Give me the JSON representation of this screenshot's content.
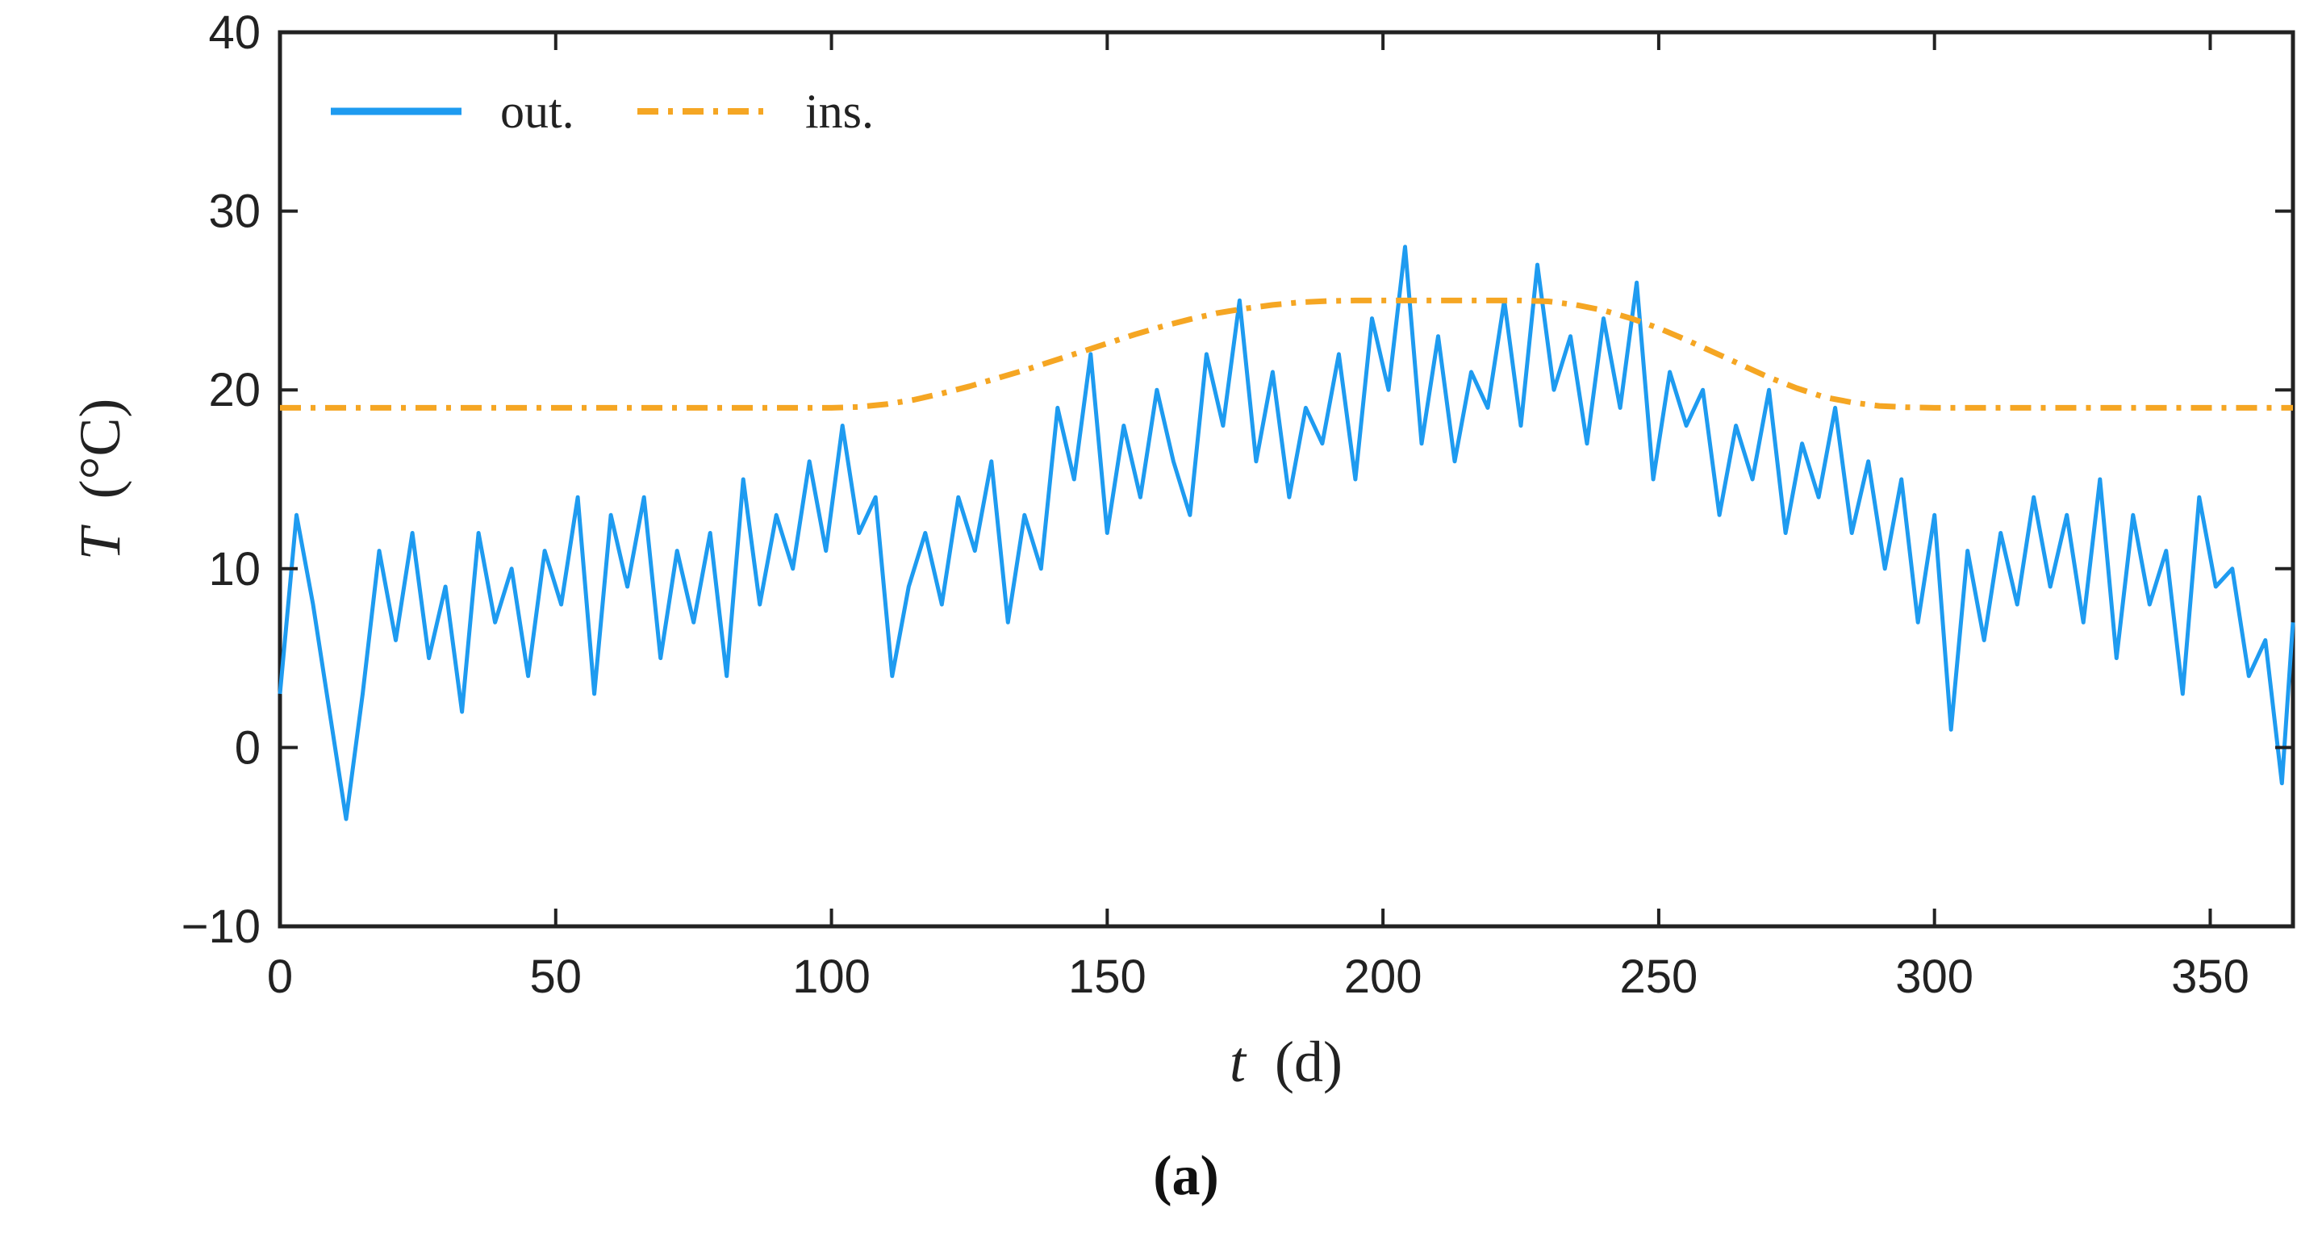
{
  "chart_data": {
    "type": "line",
    "panel_label": "(a)",
    "xlabel": "t (d)",
    "xlabel_var": "t",
    "xlabel_unit": "(d)",
    "ylabel": "T (°C)",
    "ylabel_var": "T",
    "ylabel_unit": "(°C)",
    "xlim": [
      0,
      365
    ],
    "ylim": [
      -10,
      40
    ],
    "xticks": [
      0,
      50,
      100,
      150,
      200,
      250,
      300,
      350
    ],
    "xtick_labels": [
      "0",
      "50",
      "100",
      "150",
      "200",
      "250",
      "300",
      "350"
    ],
    "yticks": [
      -10,
      0,
      10,
      20,
      30,
      40
    ],
    "ytick_labels": [
      "−10",
      "0",
      "10",
      "20",
      "30",
      "40"
    ],
    "grid": false,
    "legend_position": "top-left",
    "series": [
      {
        "name": "out.",
        "color": "#1E9BF0",
        "style": "solid",
        "x": [
          0,
          3,
          6,
          9,
          12,
          15,
          18,
          21,
          24,
          27,
          30,
          33,
          36,
          39,
          42,
          45,
          48,
          51,
          54,
          57,
          60,
          63,
          66,
          69,
          72,
          75,
          78,
          81,
          84,
          87,
          90,
          93,
          96,
          99,
          102,
          105,
          108,
          111,
          114,
          117,
          120,
          123,
          126,
          129,
          132,
          135,
          138,
          141,
          144,
          147,
          150,
          153,
          156,
          159,
          162,
          165,
          168,
          171,
          174,
          177,
          180,
          183,
          186,
          189,
          192,
          195,
          198,
          201,
          204,
          207,
          210,
          213,
          216,
          219,
          222,
          225,
          228,
          231,
          234,
          237,
          240,
          243,
          246,
          249,
          252,
          255,
          258,
          261,
          264,
          267,
          270,
          273,
          276,
          279,
          282,
          285,
          288,
          291,
          294,
          297,
          300,
          303,
          306,
          309,
          312,
          315,
          318,
          321,
          324,
          327,
          330,
          333,
          336,
          339,
          342,
          345,
          348,
          351,
          354,
          357,
          360,
          363,
          365
        ],
        "y": [
          3,
          13,
          8,
          2,
          -4,
          3,
          11,
          6,
          12,
          5,
          9,
          2,
          12,
          7,
          10,
          4,
          11,
          8,
          14,
          3,
          13,
          9,
          14,
          5,
          11,
          7,
          12,
          4,
          15,
          8,
          13,
          10,
          16,
          11,
          18,
          12,
          14,
          4,
          9,
          12,
          8,
          14,
          11,
          16,
          7,
          13,
          10,
          19,
          15,
          22,
          12,
          18,
          14,
          20,
          16,
          13,
          22,
          18,
          25,
          16,
          21,
          14,
          19,
          17,
          22,
          15,
          24,
          20,
          28,
          17,
          23,
          16,
          21,
          19,
          25,
          18,
          27,
          20,
          23,
          17,
          24,
          19,
          26,
          15,
          21,
          18,
          20,
          13,
          18,
          15,
          20,
          12,
          17,
          14,
          19,
          12,
          16,
          10,
          15,
          7,
          13,
          1,
          11,
          6,
          12,
          8,
          14,
          9,
          13,
          7,
          15,
          5,
          13,
          8,
          11,
          3,
          14,
          9,
          10,
          4,
          6,
          -2,
          7
        ]
      },
      {
        "name": "ins.",
        "color": "#F5A623",
        "style": "dash-dot",
        "x": [
          0,
          100,
          105,
          110,
          115,
          120,
          125,
          130,
          135,
          140,
          145,
          150,
          155,
          160,
          165,
          170,
          175,
          180,
          185,
          190,
          195,
          200,
          205,
          210,
          215,
          220,
          225,
          230,
          235,
          240,
          245,
          250,
          255,
          260,
          265,
          270,
          275,
          280,
          285,
          290,
          295,
          300,
          365
        ],
        "y": [
          19,
          19,
          19.05,
          19.2,
          19.45,
          19.8,
          20.2,
          20.65,
          21.1,
          21.6,
          22.1,
          22.6,
          23.1,
          23.55,
          23.95,
          24.3,
          24.55,
          24.75,
          24.9,
          24.97,
          25,
          25,
          25,
          25,
          25,
          25,
          25,
          24.95,
          24.75,
          24.45,
          24.0,
          23.45,
          22.8,
          22.1,
          21.4,
          20.7,
          20.1,
          19.6,
          19.3,
          19.1,
          19.03,
          19,
          19
        ]
      }
    ]
  }
}
